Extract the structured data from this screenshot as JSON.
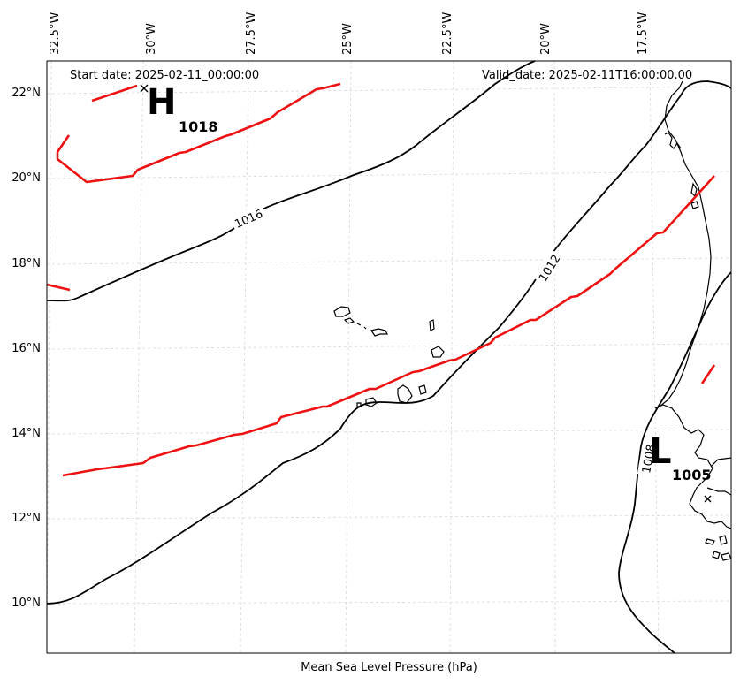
{
  "header": {
    "start_date": "Start date: 2025-02-11_00:00:00",
    "valid_date": "Valid_date: 2025-02-11T16:00:00.00"
  },
  "caption": "Mean Sea Level Pressure (hPa)",
  "lon_labels": [
    "32.5°W",
    "30°W",
    "27.5°W",
    "25°W",
    "22.5°W",
    "20°W",
    "17.5°W"
  ],
  "lat_labels": [
    "22°N",
    "20°N",
    "18°N",
    "16°N",
    "14°N",
    "12°N",
    "10°N"
  ],
  "pressure_centers": {
    "high": {
      "letter": "H",
      "value": "1018"
    },
    "low": {
      "letter": "L",
      "value": "1005"
    }
  },
  "isobar_labels": [
    "1016",
    "1012",
    "1008"
  ],
  "colors": {
    "isobar": "#000000",
    "front": "#ee1111",
    "grid": "#cccccc"
  }
}
